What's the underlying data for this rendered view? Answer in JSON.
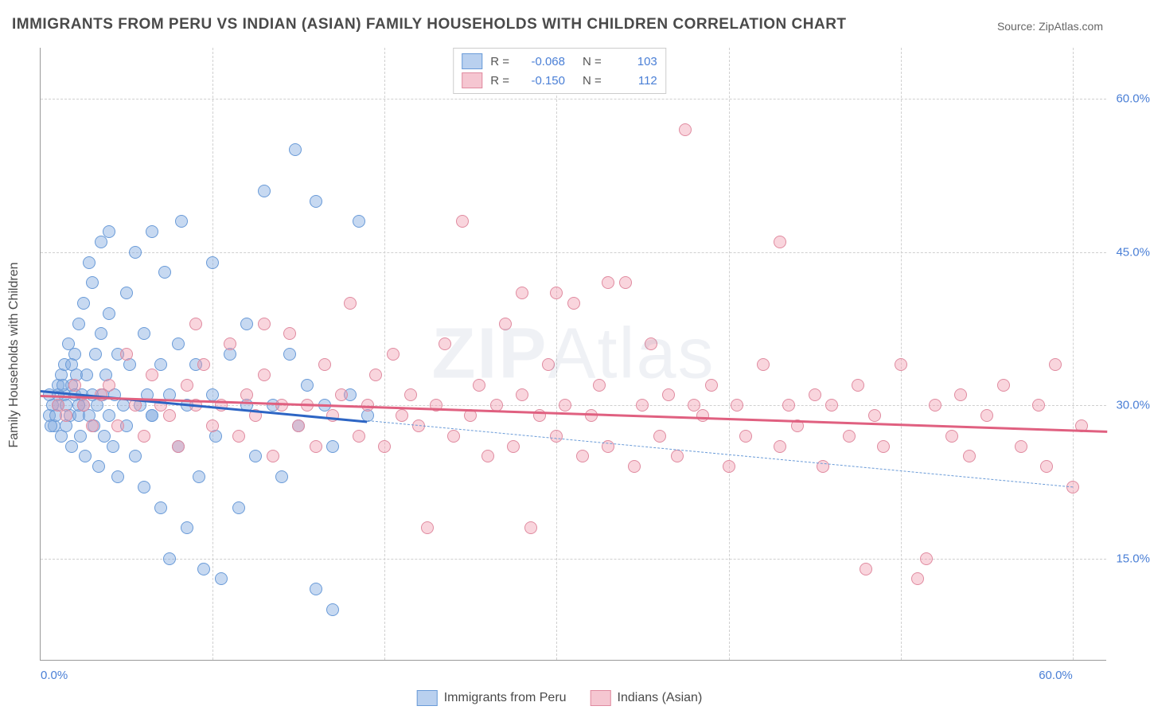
{
  "title": "IMMIGRANTS FROM PERU VS INDIAN (ASIAN) FAMILY HOUSEHOLDS WITH CHILDREN CORRELATION CHART",
  "source": "Source: ZipAtlas.com",
  "watermark": "ZIPAtlas",
  "ylabel": "Family Households with Children",
  "chart": {
    "type": "scatter",
    "xlim": [
      0,
      62
    ],
    "ylim": [
      5,
      65
    ],
    "ytick_labels": [
      "15.0%",
      "30.0%",
      "45.0%",
      "60.0%"
    ],
    "ytick_values": [
      15,
      30,
      45,
      60
    ],
    "xtick_labels": [
      "0.0%",
      "60.0%"
    ],
    "xtick_values": [
      0,
      60
    ],
    "xgrid_values": [
      10,
      20,
      30,
      40,
      50,
      60
    ],
    "grid_color": "#d0d0d0",
    "background_color": "#ffffff",
    "series": [
      {
        "name": "Immigrants from Peru",
        "color_fill": "rgba(130,170,225,0.45)",
        "color_stroke": "#6a9bd8",
        "swatch_fill": "#b9d0ef",
        "swatch_border": "#6a9bd8",
        "R": "-0.068",
        "N": "103",
        "trend": {
          "x1": 0,
          "y1": 31.5,
          "x2": 19,
          "y2": 28.5,
          "color": "#2d65c4"
        },
        "trend_ext": {
          "x1": 19,
          "y1": 28.5,
          "x2": 60,
          "y2": 22.0,
          "color": "#6a9bd8"
        },
        "points": [
          [
            0.5,
            29
          ],
          [
            0.5,
            31
          ],
          [
            0.7,
            30
          ],
          [
            0.8,
            28
          ],
          [
            1,
            32
          ],
          [
            1,
            30
          ],
          [
            1.2,
            33
          ],
          [
            1.2,
            27
          ],
          [
            1.4,
            31
          ],
          [
            1.4,
            34
          ],
          [
            1.5,
            30
          ],
          [
            1.5,
            28
          ],
          [
            1.6,
            36
          ],
          [
            1.7,
            29
          ],
          [
            1.8,
            32
          ],
          [
            1.8,
            26
          ],
          [
            2,
            31
          ],
          [
            2,
            35
          ],
          [
            2.1,
            33
          ],
          [
            2.2,
            29
          ],
          [
            2.2,
            38
          ],
          [
            2.3,
            27
          ],
          [
            2.4,
            31
          ],
          [
            2.5,
            40
          ],
          [
            2.5,
            30
          ],
          [
            2.6,
            25
          ],
          [
            2.7,
            33
          ],
          [
            2.8,
            29
          ],
          [
            3,
            42
          ],
          [
            3,
            31
          ],
          [
            3.1,
            28
          ],
          [
            3.2,
            35
          ],
          [
            3.3,
            30
          ],
          [
            3.4,
            24
          ],
          [
            3.5,
            37
          ],
          [
            3.6,
            31
          ],
          [
            3.7,
            27
          ],
          [
            3.8,
            33
          ],
          [
            4,
            29
          ],
          [
            4,
            39
          ],
          [
            4.2,
            26
          ],
          [
            4.3,
            31
          ],
          [
            4.5,
            23
          ],
          [
            4.5,
            35
          ],
          [
            4.8,
            30
          ],
          [
            5,
            41
          ],
          [
            5,
            28
          ],
          [
            5.2,
            34
          ],
          [
            5.5,
            45
          ],
          [
            5.5,
            25
          ],
          [
            5.8,
            30
          ],
          [
            6,
            37
          ],
          [
            6,
            22
          ],
          [
            6.2,
            31
          ],
          [
            6.5,
            47
          ],
          [
            6.5,
            29
          ],
          [
            7,
            34
          ],
          [
            7,
            20
          ],
          [
            7.2,
            43
          ],
          [
            7.5,
            31
          ],
          [
            7.5,
            15
          ],
          [
            8,
            36
          ],
          [
            8,
            26
          ],
          [
            8.2,
            48
          ],
          [
            8.5,
            30
          ],
          [
            8.5,
            18
          ],
          [
            9,
            34
          ],
          [
            9.2,
            23
          ],
          [
            9.5,
            14
          ],
          [
            10,
            31
          ],
          [
            10,
            44
          ],
          [
            10.2,
            27
          ],
          [
            10.5,
            13
          ],
          [
            11,
            35
          ],
          [
            11.5,
            20
          ],
          [
            12,
            30
          ],
          [
            12,
            38
          ],
          [
            12.5,
            25
          ],
          [
            13,
            51
          ],
          [
            13.5,
            30
          ],
          [
            14,
            23
          ],
          [
            14.5,
            35
          ],
          [
            14.8,
            55
          ],
          [
            15,
            28
          ],
          [
            15.5,
            32
          ],
          [
            16,
            50
          ],
          [
            16,
            12
          ],
          [
            16.5,
            30
          ],
          [
            17,
            26
          ],
          [
            17,
            10
          ],
          [
            18,
            31
          ],
          [
            18.5,
            48
          ],
          [
            19,
            29
          ],
          [
            3.5,
            46
          ],
          [
            2.8,
            44
          ],
          [
            4,
            47
          ],
          [
            6.5,
            29
          ],
          [
            1.8,
            34
          ],
          [
            1,
            31
          ],
          [
            0.6,
            28
          ],
          [
            2.2,
            30
          ],
          [
            0.9,
            29
          ],
          [
            1.3,
            32
          ]
        ]
      },
      {
        "name": "Indians (Asian)",
        "color_fill": "rgba(240,150,170,0.40)",
        "color_stroke": "#e08ba0",
        "swatch_fill": "#f5c6d1",
        "swatch_border": "#e08ba0",
        "R": "-0.150",
        "N": "112",
        "trend": {
          "x1": 0,
          "y1": 31.0,
          "x2": 62,
          "y2": 27.5,
          "color": "#e06080"
        },
        "points": [
          [
            1,
            30
          ],
          [
            1.5,
            29
          ],
          [
            2,
            32
          ],
          [
            2.5,
            30
          ],
          [
            3,
            28
          ],
          [
            3.5,
            31
          ],
          [
            4,
            32
          ],
          [
            4.5,
            28
          ],
          [
            5,
            35
          ],
          [
            5.5,
            30
          ],
          [
            6,
            27
          ],
          [
            6.5,
            33
          ],
          [
            7,
            30
          ],
          [
            7.5,
            29
          ],
          [
            8,
            26
          ],
          [
            8.5,
            32
          ],
          [
            9,
            30
          ],
          [
            9.5,
            34
          ],
          [
            10,
            28
          ],
          [
            10.5,
            30
          ],
          [
            11,
            36
          ],
          [
            11.5,
            27
          ],
          [
            12,
            31
          ],
          [
            12.5,
            29
          ],
          [
            13,
            33
          ],
          [
            13.5,
            25
          ],
          [
            14,
            30
          ],
          [
            14.5,
            37
          ],
          [
            15,
            28
          ],
          [
            15.5,
            30
          ],
          [
            16,
            26
          ],
          [
            16.5,
            34
          ],
          [
            17,
            29
          ],
          [
            17.5,
            31
          ],
          [
            18,
            40
          ],
          [
            18.5,
            27
          ],
          [
            19,
            30
          ],
          [
            19.5,
            33
          ],
          [
            20,
            26
          ],
          [
            20.5,
            35
          ],
          [
            21,
            29
          ],
          [
            21.5,
            31
          ],
          [
            22,
            28
          ],
          [
            22.5,
            18
          ],
          [
            23,
            30
          ],
          [
            23.5,
            36
          ],
          [
            24,
            27
          ],
          [
            24.5,
            48
          ],
          [
            25,
            29
          ],
          [
            25.5,
            32
          ],
          [
            26,
            25
          ],
          [
            26.5,
            30
          ],
          [
            27,
            38
          ],
          [
            27.5,
            26
          ],
          [
            28,
            31
          ],
          [
            28.5,
            18
          ],
          [
            29,
            29
          ],
          [
            29.5,
            34
          ],
          [
            30,
            27
          ],
          [
            30.5,
            30
          ],
          [
            31,
            40
          ],
          [
            31.5,
            25
          ],
          [
            32,
            29
          ],
          [
            32.5,
            32
          ],
          [
            33,
            26
          ],
          [
            34,
            42
          ],
          [
            34.5,
            24
          ],
          [
            35,
            30
          ],
          [
            35.5,
            36
          ],
          [
            36,
            27
          ],
          [
            36.5,
            31
          ],
          [
            37,
            25
          ],
          [
            37.5,
            57
          ],
          [
            38,
            30
          ],
          [
            38.5,
            29
          ],
          [
            39,
            32
          ],
          [
            40,
            24
          ],
          [
            40.5,
            30
          ],
          [
            41,
            27
          ],
          [
            42,
            34
          ],
          [
            43,
            26
          ],
          [
            43.5,
            30
          ],
          [
            44,
            28
          ],
          [
            45,
            31
          ],
          [
            45.5,
            24
          ],
          [
            46,
            30
          ],
          [
            47,
            27
          ],
          [
            47.5,
            32
          ],
          [
            48,
            14
          ],
          [
            48.5,
            29
          ],
          [
            49,
            26
          ],
          [
            50,
            34
          ],
          [
            51,
            13
          ],
          [
            51.5,
            15
          ],
          [
            52,
            30
          ],
          [
            53,
            27
          ],
          [
            53.5,
            31
          ],
          [
            54,
            25
          ],
          [
            55,
            29
          ],
          [
            56,
            32
          ],
          [
            57,
            26
          ],
          [
            58,
            30
          ],
          [
            58.5,
            24
          ],
          [
            59,
            34
          ],
          [
            60,
            22
          ],
          [
            60.5,
            28
          ],
          [
            43,
            46
          ],
          [
            33,
            42
          ],
          [
            30,
            41
          ],
          [
            28,
            41
          ],
          [
            13,
            38
          ],
          [
            9,
            38
          ]
        ]
      }
    ]
  },
  "legend_bottom": [
    {
      "label": "Immigrants from Peru",
      "fill": "#b9d0ef",
      "border": "#6a9bd8"
    },
    {
      "label": "Indians (Asian)",
      "fill": "#f5c6d1",
      "border": "#e08ba0"
    }
  ]
}
